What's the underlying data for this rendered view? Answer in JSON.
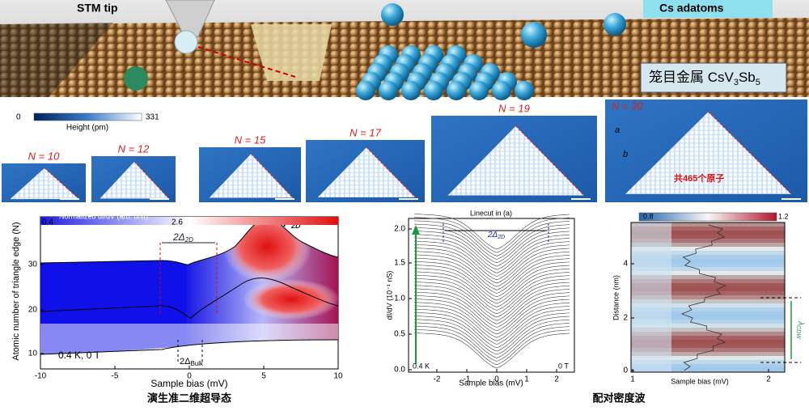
{
  "banner": {
    "tip_label": "STM tip",
    "adatom_label": "Cs adatoms",
    "material": {
      "prefix": "笼目金属 CsV",
      "sub1": "3",
      "mid": "Sb",
      "sub2": "5"
    }
  },
  "height_colorbar": {
    "min": "0",
    "max": "331",
    "label": "Height (pm)"
  },
  "triangles": [
    {
      "label": "N = 10"
    },
    {
      "label": "N = 12"
    },
    {
      "label": "N = 15"
    },
    {
      "label": "N = 17"
    },
    {
      "label": "N = 19"
    },
    {
      "label": "N = 30",
      "atoms": "共465个原子",
      "dir_a": "a",
      "dir_b": "b"
    }
  ],
  "left_panel": {
    "colorbar_label": "Normalized dI/dV (arb. unit)",
    "colorbar_min": "0.4",
    "colorbar_max": "2.6",
    "ylabel": "Atomic number of triangle edge (N)",
    "yticks": [
      "10",
      "20",
      "30"
    ],
    "xticks": [
      "-10",
      "-5",
      "0",
      "5",
      "10"
    ],
    "xlabel": "Sample bias (mV)",
    "gap_2d": {
      "main": "2Δ",
      "sub": "2D"
    },
    "peak": {
      "main": "P",
      "sub": "2D"
    },
    "gap_bulk": {
      "main": "2Δ",
      "sub": "Bulk"
    },
    "condition": "0.4 K, 0 T",
    "caption": "演生准二维超导态"
  },
  "middle_panel": {
    "title": "Linecut in (a)",
    "gap_2d": {
      "main": "2Δ",
      "sub": "2D"
    },
    "ylabel": "dI/dV (10⁻¹ nS)",
    "yticks": [
      "0.0",
      "0.5",
      "1.0",
      "1.5",
      "2.0"
    ],
    "xticks": [
      "-2",
      "-1",
      "0",
      "1",
      "2"
    ],
    "xlabel": "Sample bias (mV)",
    "temp": "0.4 K",
    "field": "0 T"
  },
  "right_panel": {
    "colorbar_min": "0.8",
    "colorbar_max": "1.2",
    "ylabel": "Distance (nm)",
    "yticks": [
      "0",
      "2",
      "4"
    ],
    "xticks": [
      "1",
      "2"
    ],
    "xlabel": "Sample bias (mV)",
    "wavelength": {
      "main": "λ",
      "sub": "CDW"
    },
    "caption": "配对密度波"
  }
}
